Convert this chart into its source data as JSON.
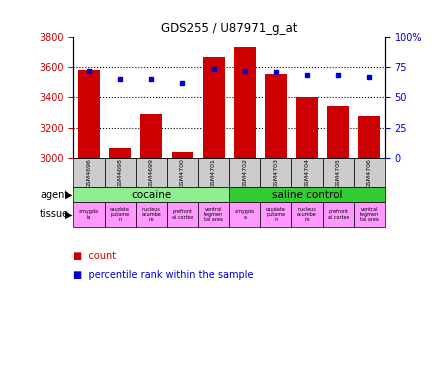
{
  "title": "GDS255 / U87971_g_at",
  "samples": [
    "GSM4696",
    "GSM4698",
    "GSM4699",
    "GSM4700",
    "GSM4701",
    "GSM4702",
    "GSM4703",
    "GSM4704",
    "GSM4705",
    "GSM4706"
  ],
  "counts": [
    3580,
    3065,
    3290,
    3040,
    3665,
    3730,
    3555,
    3400,
    3345,
    3275
  ],
  "percentiles": [
    72,
    65,
    65,
    62,
    73,
    72,
    71,
    68,
    68,
    67
  ],
  "ylim_left": [
    3000,
    3800
  ],
  "ylim_right": [
    0,
    100
  ],
  "yticks_left": [
    3000,
    3200,
    3400,
    3600,
    3800
  ],
  "yticks_right": [
    0,
    25,
    50,
    75,
    100
  ],
  "ytick_labels_right": [
    "0",
    "25",
    "50",
    "75",
    "100%"
  ],
  "agent_groups": [
    {
      "label": "cocaine",
      "start": 0,
      "end": 5,
      "color": "#90ee90"
    },
    {
      "label": "saline control",
      "start": 5,
      "end": 10,
      "color": "#33cc33"
    }
  ],
  "tissue_labels": [
    "amygda\nla",
    "caudate\nputame\nn",
    "nucleus\nacumbe\nns",
    "prefront\nal cortex",
    "ventral\ntegmen\ntal area",
    "amygda\na",
    "caudate\nputame\nn",
    "nucleus\nacumbe\nns",
    "prefront\nal cortex",
    "ventral\ntegmen\ntal area"
  ],
  "tissue_colors": [
    "#ff99ff",
    "#ff99ff",
    "#ff99ff",
    "#ff99ff",
    "#ff99ff",
    "#ff99ff",
    "#ff99ff",
    "#ff99ff",
    "#ff99ff",
    "#ff99ff"
  ],
  "bar_color": "#cc0000",
  "dot_color": "#0000cc",
  "sample_bg_color": "#cccccc",
  "legend_count_color": "#cc0000",
  "legend_pct_color": "#0000cc",
  "left_tick_color": "#cc0000",
  "right_tick_color": "#0000cc"
}
